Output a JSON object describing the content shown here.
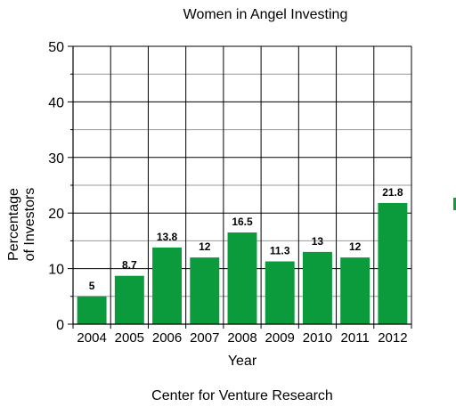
{
  "chart_data": {
    "type": "bar",
    "title": "Women in Angel Investing",
    "xlabel": "Year",
    "ylabel_lines": [
      "Percentage",
      "of Investors"
    ],
    "source": "Center for Venture Research",
    "categories": [
      "2004",
      "2005",
      "2006",
      "2007",
      "2008",
      "2009",
      "2010",
      "2011",
      "2012"
    ],
    "values": [
      5,
      8.7,
      13.8,
      12,
      16.5,
      11.3,
      13,
      12,
      21.8
    ],
    "value_labels": [
      "5",
      "8.7",
      "13.8",
      "12",
      "16.5",
      "11.3",
      "13",
      "12",
      "21.8"
    ],
    "ylim": [
      0,
      50
    ],
    "yticks": [
      "0",
      "10",
      "20",
      "30",
      "40",
      "50"
    ],
    "grid": true,
    "bar_color": "#0b9a3c"
  }
}
